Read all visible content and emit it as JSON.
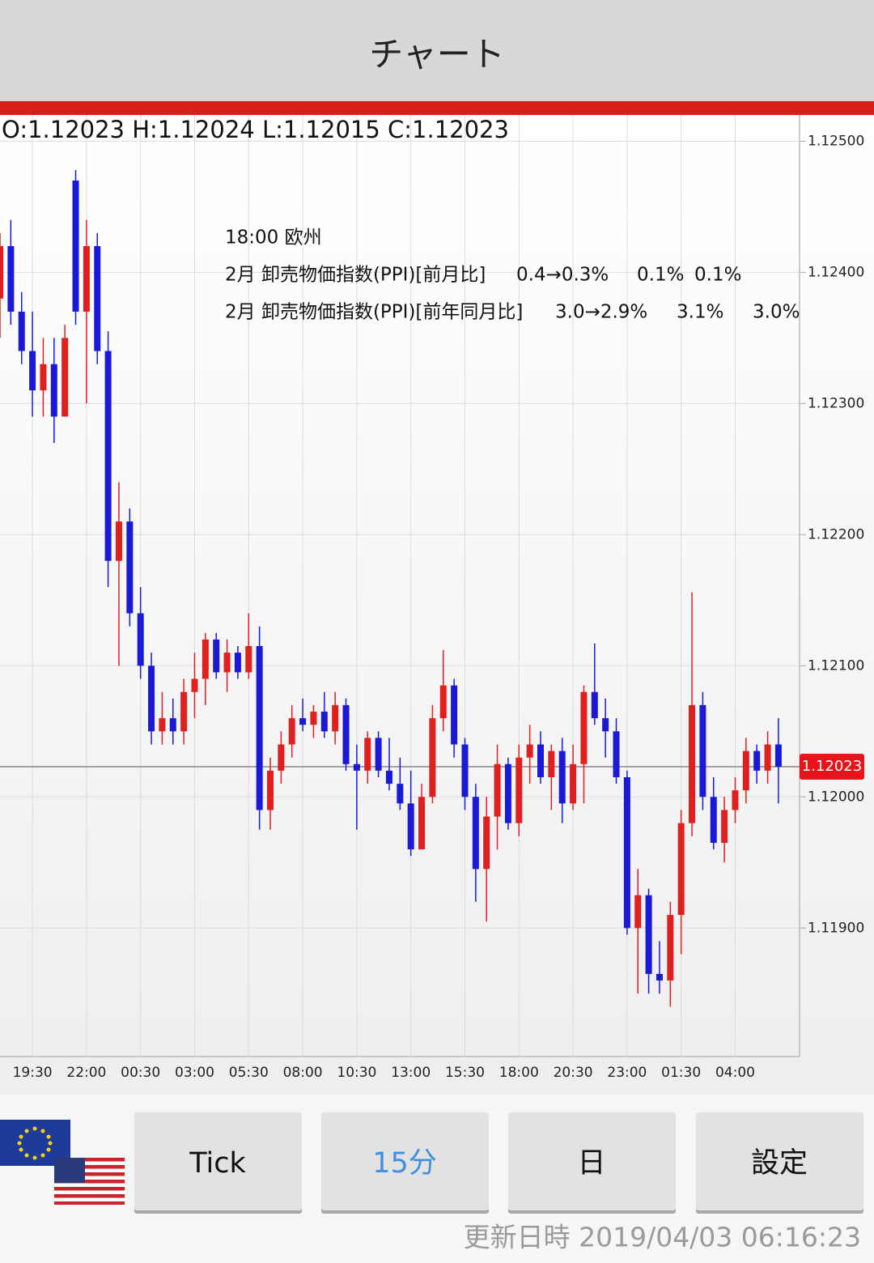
{
  "header": {
    "title": "チャート"
  },
  "ohlc_text": "O:1.12023 H:1.12024 L:1.12015 C:1.12023",
  "events": {
    "time": "18:00 欧州",
    "rows": [
      [
        "2月 卸売物価指数(PPI)[前月比]",
        "0.4→0.3%",
        "0.1%",
        "0.1%"
      ],
      [
        "2月 卸売物価指数(PPI)[前年同月比]",
        "3.0→2.9%",
        "3.1%",
        "3.0%"
      ]
    ]
  },
  "chart_data": {
    "type": "candlestick",
    "categories": [
      null,
      null,
      null,
      "19:30",
      null,
      null,
      null,
      null,
      "22:00",
      null,
      null,
      null,
      null,
      "00:30",
      null,
      null,
      null,
      null,
      "03:00",
      null,
      null,
      null,
      null,
      "05:30",
      null,
      null,
      null,
      null,
      "08:00",
      null,
      null,
      null,
      null,
      "10:30",
      null,
      null,
      null,
      null,
      "13:00",
      null,
      null,
      null,
      null,
      "15:30",
      null,
      null,
      null,
      null,
      "18:00",
      null,
      null,
      null,
      null,
      "20:30",
      null,
      null,
      null,
      null,
      "23:00",
      null,
      null,
      null,
      null,
      "01:30",
      null,
      null,
      null,
      null,
      "04:00",
      null,
      null,
      null,
      null
    ],
    "open": [
      1.1238,
      1.1242,
      1.1237,
      1.1234,
      1.1231,
      1.1233,
      1.1229,
      1.1247,
      1.1237,
      1.1242,
      1.1234,
      1.1218,
      1.1221,
      1.1214,
      1.121,
      1.1205,
      1.1206,
      1.1205,
      1.1208,
      1.1209,
      1.1212,
      1.12095,
      1.1211,
      1.12095,
      1.12115,
      1.1199,
      1.1202,
      1.1204,
      1.1206,
      1.12055,
      1.12065,
      1.1205,
      1.1207,
      1.12025,
      1.1202,
      1.12045,
      1.1202,
      1.1201,
      1.11995,
      1.1196,
      1.12,
      1.1206,
      1.12085,
      1.1204,
      1.12,
      1.11945,
      1.11985,
      1.12025,
      1.1198,
      1.1203,
      1.1204,
      1.12015,
      1.12035,
      1.11995,
      1.12025,
      1.1208,
      1.1206,
      1.1205,
      1.12015,
      1.119,
      1.11925,
      1.11865,
      1.1186,
      1.1191,
      1.1198,
      1.1207,
      1.12,
      1.11965,
      1.1199,
      1.12005,
      1.12035,
      1.1202,
      1.1204
    ],
    "high": [
      1.1243,
      1.1244,
      1.12385,
      1.1237,
      1.1235,
      1.1235,
      1.1236,
      1.12478,
      1.1244,
      1.1243,
      1.12355,
      1.1224,
      1.1222,
      1.1216,
      1.1211,
      1.1208,
      1.12075,
      1.1209,
      1.1211,
      1.12125,
      1.12125,
      1.1212,
      1.12115,
      1.1214,
      1.1213,
      1.1203,
      1.1205,
      1.1207,
      1.12075,
      1.1207,
      1.1208,
      1.1208,
      1.12075,
      1.1204,
      1.1205,
      1.1205,
      1.12045,
      1.1203,
      1.1202,
      1.1201,
      1.1207,
      1.12112,
      1.1209,
      1.12045,
      1.1201,
      1.12,
      1.1204,
      1.1203,
      1.1204,
      1.12055,
      1.1205,
      1.1204,
      1.12045,
      1.1204,
      1.12085,
      1.12117,
      1.12075,
      1.1206,
      1.1202,
      1.11945,
      1.1193,
      1.1189,
      1.1192,
      1.1199,
      1.12156,
      1.1208,
      1.12015,
      1.12,
      1.12015,
      1.12045,
      1.1204,
      1.1205,
      1.1206
    ],
    "low": [
      1.1235,
      1.1236,
      1.1233,
      1.1229,
      1.1229,
      1.1227,
      1.1229,
      1.1236,
      1.123,
      1.1233,
      1.1216,
      1.121,
      1.1213,
      1.1209,
      1.1204,
      1.1204,
      1.1204,
      1.1204,
      1.1206,
      1.1207,
      1.1209,
      1.1208,
      1.1209,
      1.1209,
      1.11975,
      1.11975,
      1.1201,
      1.1203,
      1.1205,
      1.12045,
      1.12045,
      1.1204,
      1.1202,
      1.11975,
      1.1201,
      1.12015,
      1.12005,
      1.1199,
      1.11955,
      1.1196,
      1.11995,
      1.1205,
      1.1203,
      1.1199,
      1.1192,
      1.11905,
      1.1196,
      1.11975,
      1.1197,
      1.1201,
      1.1201,
      1.1199,
      1.1198,
      1.1199,
      1.11995,
      1.12055,
      1.1203,
      1.1201,
      1.11895,
      1.1185,
      1.1185,
      1.1185,
      1.1184,
      1.1188,
      1.1197,
      1.1199,
      1.1196,
      1.1195,
      1.1198,
      1.11995,
      1.1201,
      1.1201,
      1.11995
    ],
    "close": [
      1.1242,
      1.1237,
      1.1234,
      1.1231,
      1.1233,
      1.1229,
      1.1235,
      1.1237,
      1.1242,
      1.1234,
      1.1218,
      1.1221,
      1.1214,
      1.121,
      1.1205,
      1.1206,
      1.1205,
      1.1208,
      1.1209,
      1.1212,
      1.12095,
      1.1211,
      1.12095,
      1.12115,
      1.1199,
      1.1202,
      1.1204,
      1.1206,
      1.12055,
      1.12065,
      1.1205,
      1.1207,
      1.12025,
      1.1202,
      1.12045,
      1.1202,
      1.1201,
      1.11995,
      1.1196,
      1.12,
      1.1206,
      1.12085,
      1.1204,
      1.12,
      1.11945,
      1.11985,
      1.12025,
      1.1198,
      1.1203,
      1.1204,
      1.12015,
      1.12035,
      1.11995,
      1.12025,
      1.1208,
      1.1206,
      1.1205,
      1.12015,
      1.119,
      1.11925,
      1.11865,
      1.1186,
      1.1191,
      1.1198,
      1.1207,
      1.12,
      1.11965,
      1.1199,
      1.12005,
      1.12035,
      1.1202,
      1.1204,
      1.12023
    ],
    "up_color": "#e0201f",
    "down_color": "#1a1ad6",
    "ylim": [
      1.11802,
      1.1252
    ],
    "yticks": [
      {
        "value": 1.125,
        "label": "1.12500"
      },
      {
        "value": 1.124,
        "label": "1.12400"
      },
      {
        "value": 1.123,
        "label": "1.12300"
      },
      {
        "value": 1.122,
        "label": "1.12200"
      },
      {
        "value": 1.121,
        "label": "1.12100"
      },
      {
        "value": 1.12,
        "label": "1.12000"
      },
      {
        "value": 1.119,
        "label": "1.11900"
      }
    ],
    "last_price": 1.12023,
    "grid": true
  },
  "buttons": [
    "Tick",
    "15分",
    "日",
    "設定"
  ],
  "selected_button": 1,
  "footer": "更新日時 2019/04/03 06:16:23"
}
